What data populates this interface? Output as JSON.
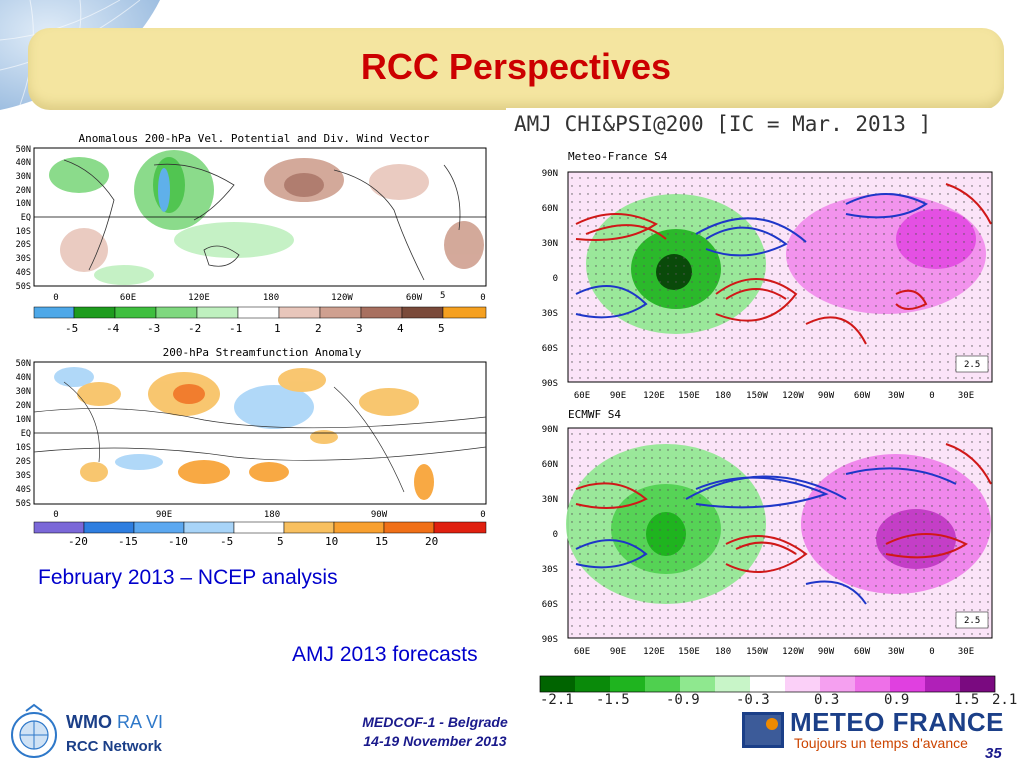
{
  "slide": {
    "title": "RCC Perspectives",
    "caption_ncep": "February 2013 – NCEP analysis",
    "caption_forecasts": "AMJ 2013 forecasts",
    "footer_line1": "MEDCOF-1 - Belgrade",
    "footer_line2": "14-19 November 2013",
    "page_number": "35",
    "accent_title_color": "#cc0000",
    "title_bar_color": "#f4e5a0"
  },
  "logos": {
    "wmo_line1_a": "WMO",
    "wmo_line1_b": "RA VI",
    "wmo_line2": "RCC Network",
    "meteo_line1": "METEO FRANCE",
    "meteo_line2": "Toujours un temps d'avance"
  },
  "ncep_top": {
    "title": "Anomalous 200-hPa Vel. Potential and Div. Wind Vector",
    "lat_labels": [
      "50N",
      "40N",
      "30N",
      "20N",
      "10N",
      "EQ",
      "10S",
      "20S",
      "30S",
      "40S",
      "50S"
    ],
    "lon_labels": [
      "0",
      "60E",
      "120E",
      "180",
      "120W",
      "60W",
      "0"
    ],
    "vector_ref": "5",
    "colorbar_labels": [
      "-5",
      "-4",
      "-3",
      "-2",
      "-1",
      "1",
      "2",
      "3",
      "4",
      "5"
    ],
    "colorbar_colors": [
      "#4ea8e8",
      "#1e9c1e",
      "#3fbf3f",
      "#7fd87f",
      "#bff0bf",
      "#ffffff",
      "#e8c6bb",
      "#cfa090",
      "#a87060",
      "#7a4a3a",
      "#f5a020"
    ]
  },
  "ncep_bottom": {
    "title": "200-hPa Streamfunction Anomaly",
    "lat_labels": [
      "50N",
      "40N",
      "30N",
      "20N",
      "10N",
      "EQ",
      "10S",
      "20S",
      "30S",
      "40S",
      "50S"
    ],
    "lon_labels": [
      "0",
      "90E",
      "180",
      "90W",
      "0"
    ],
    "colorbar_labels": [
      "-20",
      "-15",
      "-10",
      "-5",
      "5",
      "10",
      "15",
      "20"
    ],
    "colorbar_colors": [
      "#7b68d8",
      "#2e7ee0",
      "#5ca8f0",
      "#a8d4f8",
      "#ffffff",
      "#f8c060",
      "#f8a030",
      "#f07018",
      "#e02010"
    ]
  },
  "mf": {
    "header": "AMJ CHI&PSI@200 [IC = Mar. 2013 ]",
    "panel1_label": "Meteo-France S4",
    "panel2_label": "ECMWF S4",
    "lat_labels": [
      "90N",
      "60N",
      "30N",
      "0",
      "30S",
      "60S",
      "90S"
    ],
    "lon_labels": [
      "60E",
      "90E",
      "120E",
      "150E",
      "180",
      "150W",
      "120W",
      "90W",
      "60W",
      "30W",
      "0",
      "30E"
    ],
    "vector_ref": "2.5",
    "colorbar_labels": [
      "-2.1",
      "-1.5",
      "-0.9",
      "-0.3",
      "0.3",
      "0.9",
      "1.5",
      "2.1"
    ],
    "colorbar_colors": [
      "#006400",
      "#0a8a0a",
      "#1fb41f",
      "#4fd04f",
      "#8fe88f",
      "#c8f5c8",
      "#ffffff",
      "#fbd0f8",
      "#f5a0f0",
      "#ee70e8",
      "#e040e0",
      "#b020b8",
      "#7a0a80"
    ]
  }
}
